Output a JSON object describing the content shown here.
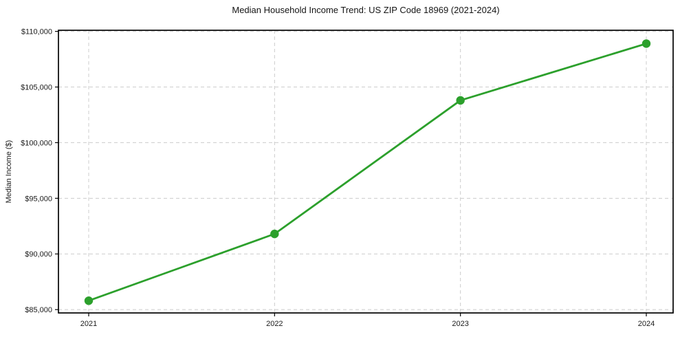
{
  "chart_data": {
    "type": "line",
    "title": "Median Household Income Trend: US ZIP Code 18969 (2021-2024)",
    "xlabel": "",
    "ylabel": "Median Income ($)",
    "categories": [
      "2021",
      "2022",
      "2023",
      "2024"
    ],
    "series": [
      {
        "values": [
          85800,
          91800,
          103800,
          108900
        ]
      }
    ],
    "ylim": [
      84700,
      110100
    ],
    "yticks": [
      85000,
      90000,
      95000,
      100000,
      105000,
      110000
    ],
    "ytick_labels": [
      "$85,000",
      "$90,000",
      "$95,000",
      "$100,000",
      "$105,000",
      "$110,000"
    ],
    "xtick_labels": [
      "2021",
      "2022",
      "2023",
      "2024"
    ],
    "grid": "dashed-both-axes",
    "legend": "none",
    "colors": {
      "line": "#2ca02c",
      "marker": "#2ca02c",
      "grid": "#cccccc",
      "spine": "#000000",
      "text": "#1a1a1a",
      "background": "#ffffff"
    }
  }
}
